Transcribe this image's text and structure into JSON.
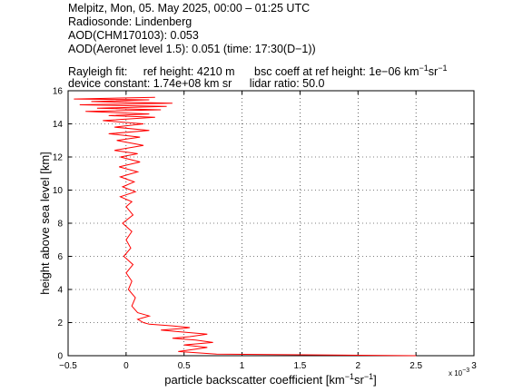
{
  "header": {
    "line1": "Melpitz, Mon, 05. May 2025, 00:00 – 01:25 UTC",
    "line2": "Radiosonde: Lindenberg",
    "line3": "AOD(CHM170103): 0.053",
    "line4": "AOD(Aeronet level 1.5): 0.051   (time: 17:30(D−1))",
    "rayleigh_label": "Rayleigh fit:",
    "ref_height": "ref height: 4210 m",
    "bsc_coeff_prefix": "bsc coeff at ref height: 1e−06 km",
    "bsc_coeff_exp1": "−1",
    "bsc_coeff_mid": "sr",
    "bsc_coeff_exp2": "−1",
    "device_constant": "device constant: 1.74e+08 km sr",
    "lidar_ratio": "lidar ratio: 50.0"
  },
  "chart_data": {
    "type": "line",
    "xlabel_prefix": "particle backscatter coefficient [km",
    "xlabel_exp1": "−1",
    "xlabel_mid": "sr",
    "xlabel_exp2": "−1",
    "xlabel_suffix": "]",
    "ylabel": "height above sea level [km]",
    "x_multiplier_label": "x 10",
    "x_multiplier_exp": "−3",
    "xlim": [
      -0.5,
      3
    ],
    "ylim": [
      0,
      16
    ],
    "xticks": [
      -0.5,
      0,
      0.5,
      1,
      1.5,
      2,
      2.5,
      3
    ],
    "xtick_labels": [
      "−0.5",
      "0",
      "0.5",
      "1",
      "1.5",
      "2",
      "2.5",
      "3"
    ],
    "yticks": [
      0,
      2,
      4,
      6,
      8,
      10,
      12,
      14,
      16
    ],
    "ytick_labels": [
      "0",
      "2",
      "4",
      "6",
      "8",
      "10",
      "12",
      "14",
      "16"
    ],
    "grid": true,
    "line_color": "#ff0000",
    "series": [
      {
        "values_x": [
          2.5,
          0.78,
          0.45,
          0.6,
          0.7,
          0.5,
          0.75,
          0.6,
          0.4,
          0.55,
          0.7,
          0.45,
          0.3,
          0.5,
          0.55,
          0.4,
          0.2,
          0.15,
          0.1,
          0.2,
          0.1,
          0.05,
          0.08,
          0.02,
          0.05,
          0.0,
          0.06,
          -0.02,
          0.04,
          0.0,
          0.05,
          -0.03,
          0.06,
          0.0,
          0.05,
          -0.05,
          0.08,
          -0.03,
          0.07,
          -0.05,
          0.1,
          -0.06,
          0.12,
          -0.05,
          0.1,
          -0.1,
          0.15,
          -0.08,
          0.12,
          -0.15,
          0.2,
          -0.1,
          0.15,
          -0.2,
          0.25,
          -0.15,
          0.2,
          -0.35,
          0.3,
          -0.25,
          0.35,
          -0.4,
          0.4,
          -0.3,
          0.2,
          -0.45,
          0.25
        ],
        "values_y": [
          0.0,
          0.1,
          0.25,
          0.4,
          0.5,
          0.65,
          0.8,
          0.95,
          1.05,
          1.15,
          1.3,
          1.45,
          1.55,
          1.65,
          1.7,
          1.8,
          1.9,
          2.0,
          2.2,
          2.4,
          2.6,
          3.0,
          3.5,
          4.0,
          4.5,
          5.0,
          5.5,
          6.0,
          6.5,
          7.0,
          7.5,
          8.0,
          8.5,
          9.0,
          9.3,
          9.6,
          9.9,
          10.2,
          10.5,
          10.8,
          11.1,
          11.4,
          11.7,
          12.0,
          12.2,
          12.4,
          12.7,
          13.0,
          13.2,
          13.4,
          13.6,
          13.8,
          14.0,
          14.2,
          14.4,
          14.5,
          14.6,
          14.75,
          14.85,
          14.95,
          15.05,
          15.15,
          15.25,
          15.35,
          15.45,
          15.5,
          15.6
        ]
      }
    ]
  }
}
